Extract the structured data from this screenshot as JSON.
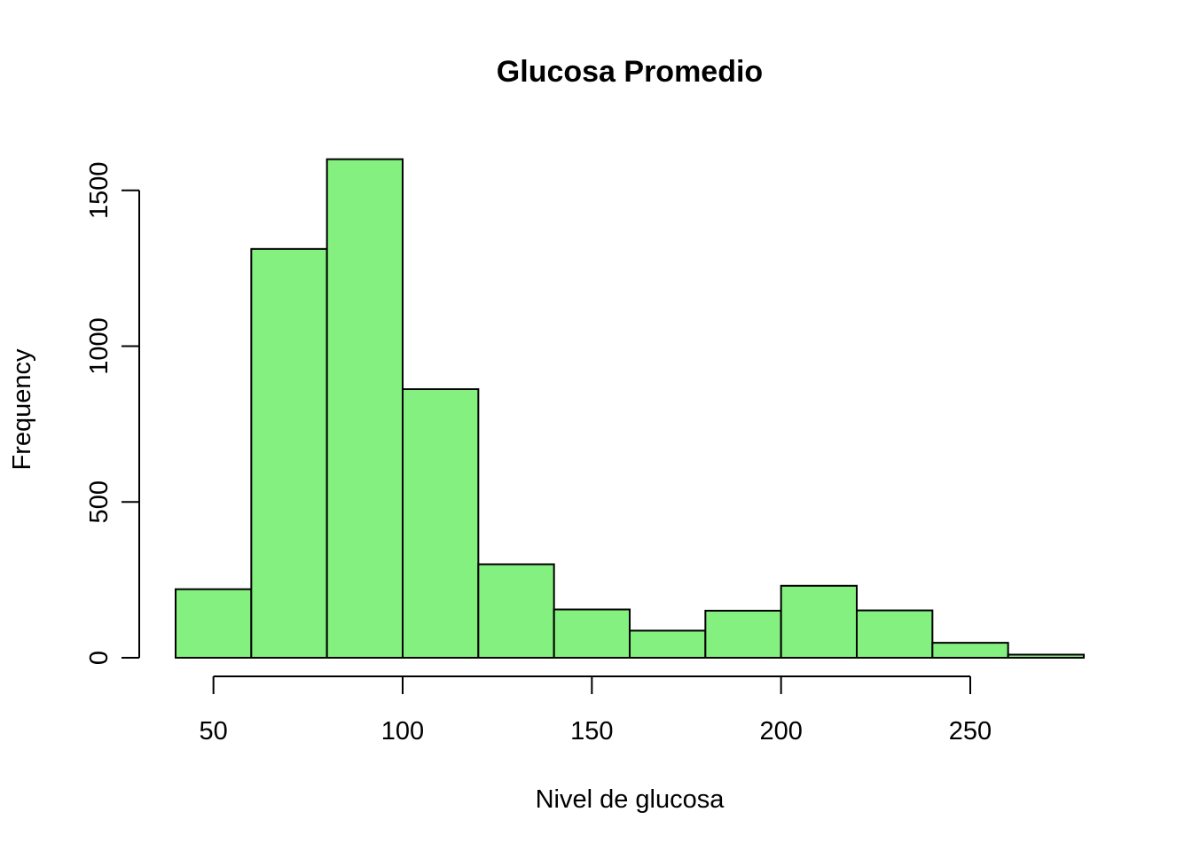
{
  "chart_data": {
    "type": "bar",
    "title": "Glucosa Promedio",
    "xlabel": "Nivel de glucosa",
    "ylabel": "Frequency",
    "bar_color": "#83F07F",
    "border_color": "#000000",
    "bins": [
      {
        "start": 40,
        "end": 60,
        "count": 220
      },
      {
        "start": 60,
        "end": 80,
        "count": 1312
      },
      {
        "start": 80,
        "end": 100,
        "count": 1600
      },
      {
        "start": 100,
        "end": 120,
        "count": 862
      },
      {
        "start": 120,
        "end": 140,
        "count": 300
      },
      {
        "start": 140,
        "end": 160,
        "count": 155
      },
      {
        "start": 160,
        "end": 180,
        "count": 87
      },
      {
        "start": 180,
        "end": 200,
        "count": 151
      },
      {
        "start": 200,
        "end": 220,
        "count": 231
      },
      {
        "start": 220,
        "end": 240,
        "count": 152
      },
      {
        "start": 240,
        "end": 260,
        "count": 48
      },
      {
        "start": 260,
        "end": 280,
        "count": 10
      }
    ],
    "xlim": [
      40,
      280
    ],
    "ylim": [
      0,
      1600
    ],
    "x_ticks": [
      50,
      100,
      150,
      200,
      250
    ],
    "x_tick_labels": [
      "50",
      "100",
      "150",
      "200",
      "250"
    ],
    "y_ticks": [
      0,
      500,
      1000,
      1500
    ],
    "y_tick_labels": [
      "0",
      "500",
      "1000",
      "1500"
    ],
    "grid": false,
    "legend": "none"
  }
}
